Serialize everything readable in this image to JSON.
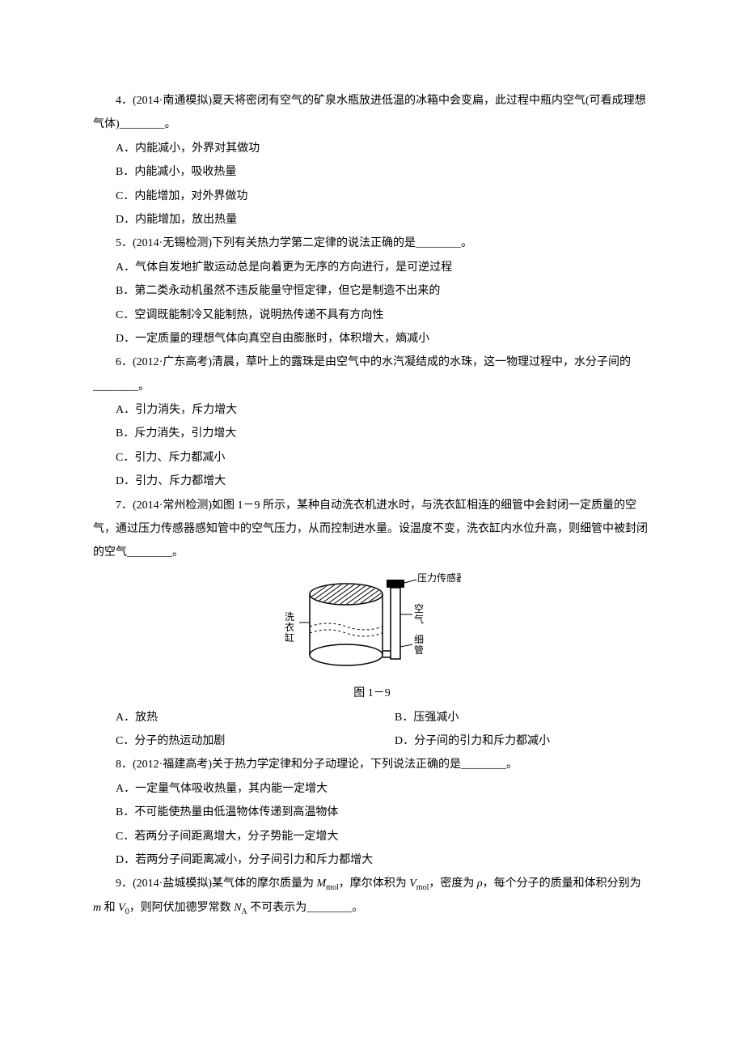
{
  "q4": {
    "stem_a": "4．(2014·",
    "stem_src": "南通模拟",
    "stem_b": ")夏天将密闭有空气的矿泉水瓶放进低温的冰箱中会变扁，此过程中瓶内空气(可看成理想气体)________。",
    "A": "A．内能减小，外界对其做功",
    "B": "B．内能减小，吸收热量",
    "C": "C．内能增加，对外界做功",
    "D": "D．内能增加，放出热量"
  },
  "q5": {
    "stem_a": "5．(2014·",
    "stem_src": "无锡检测",
    "stem_b": ")下列有关热力学第二定律的说法正确的是________。",
    "A": "A．气体自发地扩散运动总是向着更为无序的方向进行，是可逆过程",
    "B": "B．第二类永动机虽然不违反能量守恒定律，但它是制造不出来的",
    "C": "C．空调既能制冷又能制热，说明热传递不具有方向性",
    "D": "D．一定质量的理想气体向真空自由膨胀时，体积增大，熵减小"
  },
  "q6": {
    "stem_a": "6．(2012·",
    "stem_src": "广东高考",
    "stem_b": ")清晨，草叶上的露珠是由空气中的水汽凝结成的水珠，这一物理过程中，水分子间的________。",
    "A": "A．引力消失，斥力增大",
    "B": "B．斥力消失，引力增大",
    "C": "C．引力、斥力都减小",
    "D": "D．引力、斥力都增大"
  },
  "q7": {
    "stem_a": "7．(2014·",
    "stem_src": "常州检测",
    "stem_b": ")如图 1－9 所示，某种自动洗衣机进水时，与洗衣缸相连的细管中会封闭一定质量的空气，通过压力传感器感知管中的空气压力，从而控制进水量。设温度不变，洗衣缸内水位升高，则细管中被封闭的空气________。",
    "fig": {
      "sensor": "压力传感器",
      "tub": "洗衣缸",
      "air": "空气",
      "tube": "细管",
      "caption": "图 1－9",
      "colors": {
        "stroke": "#000000",
        "fill": "#ffffff",
        "hatch": "#000000"
      }
    },
    "A": "A．放热",
    "B": "B．压强减小",
    "C": "C．分子的热运动加剧",
    "D": "D．分子间的引力和斥力都减小"
  },
  "q8": {
    "stem_a": "8．(2012·",
    "stem_src": "福建高考",
    "stem_b": ")关于热力学定律和分子动理论，下列说法正确的是________。",
    "A": "A．一定量气体吸收热量，其内能一定增大",
    "B": "B．不可能使热量由低温物体传递到高温物体",
    "C": "C．若两分子间距离增大，分子势能一定增大",
    "D": "D．若两分子间距离减小，分子间引力和斥力都增大"
  },
  "q9": {
    "stem_a": "9．(2014·",
    "stem_src": "盐城模拟",
    "stem_b_html": ")某气体的摩尔质量为 <span class=\"it\">M</span><sub class=\"rm\">mol</sub>，摩尔体积为 <span class=\"it\">V</span><sub class=\"rm\">mol</sub>，密度为 <span class=\"it\">ρ</span>，每个分子的质量和体积分别为 <span class=\"it\">m</span> 和 <span class=\"it\">V</span><sub class=\"rm\">0</sub>，则阿伏加德罗常数 <span class=\"it\">N</span><sub class=\"rm\">A</sub> 不可表示为________。"
  }
}
